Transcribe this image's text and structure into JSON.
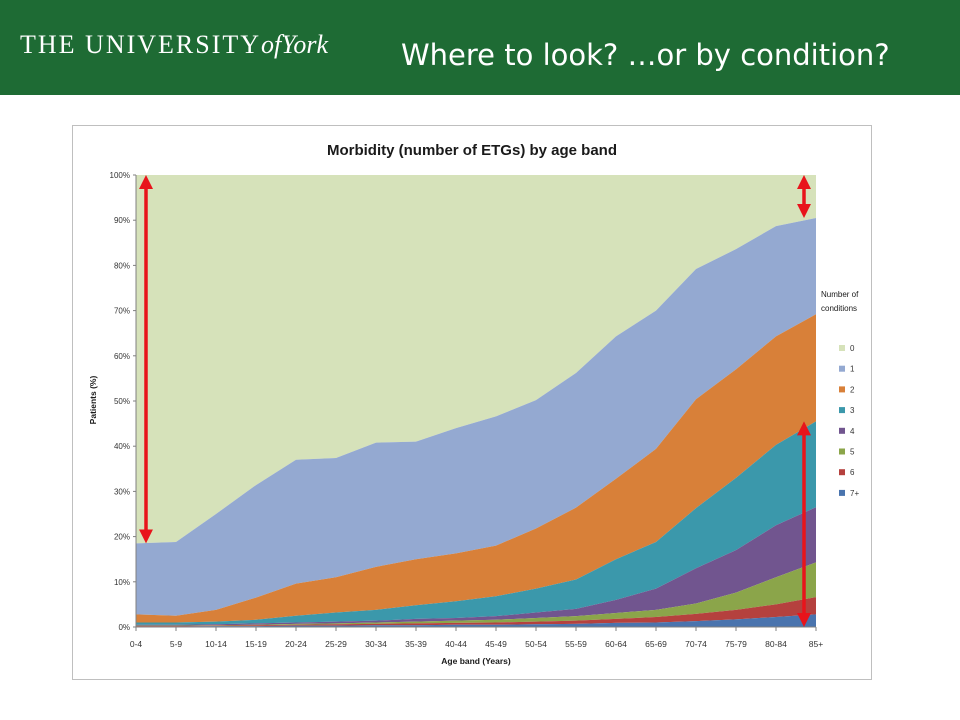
{
  "header": {
    "logo_main": "THE UNIVERSITY",
    "logo_of": "of",
    "logo_york": "York",
    "title": "Where to look? …or by condition?"
  },
  "colors": {
    "header_bg": "#1e6b34",
    "annotation_arrow": "#e8141b"
  },
  "chart_data": {
    "type": "area",
    "stacked": "percent",
    "title": "Morbidity (number of ETGs) by age band",
    "xlabel": "Age band (Years)",
    "ylabel": "Patients (%)",
    "ylim": [
      0,
      100
    ],
    "yticks": [
      "0%",
      "10%",
      "20%",
      "30%",
      "40%",
      "50%",
      "60%",
      "70%",
      "80%",
      "90%",
      "100%"
    ],
    "grid": false,
    "legend_title": "Number of conditions",
    "legend_position": "right",
    "categories": [
      "0-4",
      "5-9",
      "10-14",
      "15-19",
      "20-24",
      "25-29",
      "30-34",
      "35-39",
      "40-44",
      "45-49",
      "50-54",
      "55-59",
      "60-64",
      "65-69",
      "70-74",
      "75-79",
      "80-84",
      "85+"
    ],
    "cumulative_tops": [
      {
        "name": "7+",
        "color": "#4a74ae",
        "values": [
          0.1,
          0.1,
          0.2,
          0.2,
          0.3,
          0.3,
          0.4,
          0.4,
          0.5,
          0.5,
          0.6,
          0.7,
          0.9,
          1.0,
          1.3,
          1.7,
          2.2,
          2.8
        ]
      },
      {
        "name": "6",
        "color": "#b5413e",
        "values": [
          0.2,
          0.2,
          0.3,
          0.4,
          0.5,
          0.6,
          0.7,
          0.8,
          0.9,
          1.0,
          1.2,
          1.4,
          1.8,
          2.2,
          2.9,
          3.8,
          5.0,
          6.6
        ]
      },
      {
        "name": "5",
        "color": "#8ba54a",
        "values": [
          0.3,
          0.3,
          0.4,
          0.5,
          0.7,
          0.8,
          1.0,
          1.2,
          1.4,
          1.6,
          2.0,
          2.4,
          3.1,
          3.8,
          5.2,
          7.6,
          11.0,
          14.3
        ]
      },
      {
        "name": "4",
        "color": "#71558f",
        "values": [
          0.5,
          0.5,
          0.6,
          0.8,
          1.0,
          1.2,
          1.4,
          1.8,
          2.0,
          2.4,
          3.2,
          4.0,
          6.0,
          8.5,
          13.0,
          17.0,
          22.5,
          26.5
        ]
      },
      {
        "name": "3",
        "color": "#3b98ab",
        "values": [
          1.0,
          1.0,
          1.2,
          1.6,
          2.5,
          3.2,
          3.8,
          4.8,
          5.7,
          6.8,
          8.5,
          10.5,
          15.0,
          18.8,
          26.3,
          33.0,
          40.3,
          45.5
        ]
      },
      {
        "name": "2",
        "color": "#d88039",
        "values": [
          2.8,
          2.5,
          3.8,
          6.5,
          9.6,
          11.0,
          13.3,
          15.0,
          16.3,
          18.0,
          21.8,
          26.4,
          32.8,
          39.4,
          50.4,
          57.0,
          64.3,
          69.2
        ]
      },
      {
        "name": "1",
        "color": "#94a9d1",
        "values": [
          18.5,
          18.8,
          25.0,
          31.4,
          37.0,
          37.4,
          40.8,
          41.0,
          44.0,
          46.6,
          50.2,
          56.2,
          64.3,
          70.0,
          79.2,
          83.6,
          88.7,
          90.5
        ]
      },
      {
        "name": "0",
        "color": "#d6e2ba",
        "values": [
          100,
          100,
          100,
          100,
          100,
          100,
          100,
          100,
          100,
          100,
          100,
          100,
          100,
          100,
          100,
          100,
          100,
          100
        ]
      }
    ],
    "legend_order": [
      "0",
      "1",
      "2",
      "3",
      "4",
      "5",
      "6",
      "7+"
    ],
    "annotations": [
      {
        "type": "double-arrow",
        "category": "0-4",
        "from": 18.5,
        "to": 100
      },
      {
        "type": "double-arrow",
        "category": "85+",
        "from": 90.5,
        "to": 100
      },
      {
        "type": "double-arrow",
        "category": "85+",
        "from": 0,
        "to": 45.5
      }
    ]
  }
}
